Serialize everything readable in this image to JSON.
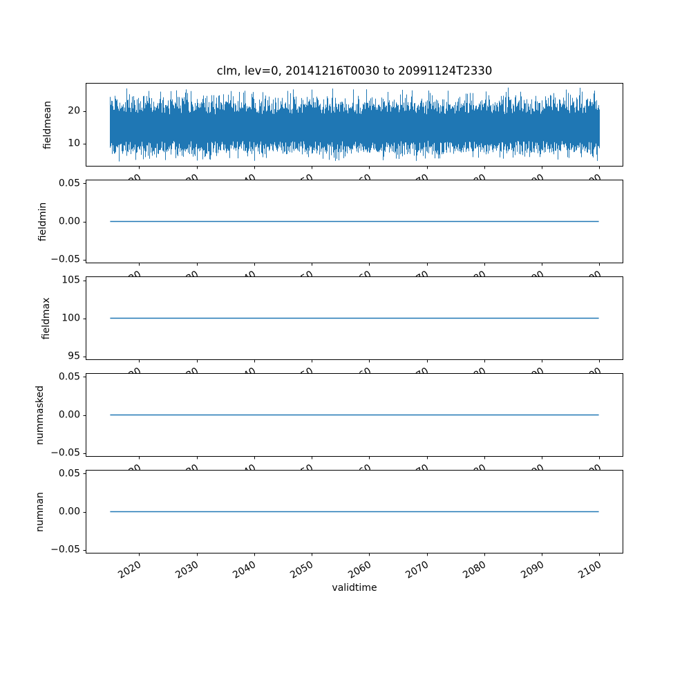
{
  "figure": {
    "title": "clm, lev=0, 20141216T0030 to 20991124T2330",
    "xlabel": "validtime",
    "background_color": "#ffffff",
    "line_color": "#1f77b4",
    "spine_color": "#000000",
    "text_color": "#000000"
  },
  "xaxis": {
    "lim": [
      2010.71,
      2104.15
    ],
    "ticks": [
      2020,
      2030,
      2040,
      2050,
      2060,
      2070,
      2080,
      2090,
      2100
    ],
    "tick_labels": [
      "2020",
      "2030",
      "2040",
      "2050",
      "2060",
      "2070",
      "2080",
      "2090",
      "2100"
    ],
    "tick_label_rotation_deg": 30,
    "data_start": 2014.96,
    "data_end": 2099.9
  },
  "chart_data": [
    {
      "type": "line",
      "name": "fieldmean",
      "ylabel": "fieldmean",
      "ylim": [
        3.15,
        28.56
      ],
      "yticks": [
        {
          "value": 10,
          "label": "10"
        },
        {
          "value": 20,
          "label": "20"
        }
      ],
      "series": {
        "kind": "dense-noise",
        "description": "high-frequency oscillating signal, solid band with spikes",
        "mean": 15,
        "band": [
          11,
          19
        ],
        "typical_range": [
          7.5,
          22.5
        ],
        "extremes": [
          4.3,
          27.4
        ],
        "seed": 20141216
      }
    },
    {
      "type": "line",
      "name": "fieldmin",
      "ylabel": "fieldmin",
      "ylim": [
        -0.055,
        0.055
      ],
      "yticks": [
        {
          "value": -0.05,
          "label": "−0.05"
        },
        {
          "value": 0,
          "label": "0.00"
        },
        {
          "value": 0.05,
          "label": "0.05"
        }
      ],
      "series": {
        "kind": "constant",
        "value": 0.0
      }
    },
    {
      "type": "line",
      "name": "fieldmax",
      "ylabel": "fieldmax",
      "ylim": [
        94.5,
        105.5
      ],
      "yticks": [
        {
          "value": 95,
          "label": "95"
        },
        {
          "value": 100,
          "label": "100"
        },
        {
          "value": 105,
          "label": "105"
        }
      ],
      "series": {
        "kind": "constant",
        "value": 100.0
      }
    },
    {
      "type": "line",
      "name": "nummasked",
      "ylabel": "nummasked",
      "ylim": [
        -0.055,
        0.055
      ],
      "yticks": [
        {
          "value": -0.05,
          "label": "−0.05"
        },
        {
          "value": 0,
          "label": "0.00"
        },
        {
          "value": 0.05,
          "label": "0.05"
        }
      ],
      "series": {
        "kind": "constant",
        "value": 0.0
      }
    },
    {
      "type": "line",
      "name": "numnan",
      "ylabel": "numnan",
      "ylim": [
        -0.055,
        0.055
      ],
      "yticks": [
        {
          "value": -0.05,
          "label": "−0.05"
        },
        {
          "value": 0,
          "label": "0.00"
        },
        {
          "value": 0.05,
          "label": "0.05"
        }
      ],
      "series": {
        "kind": "constant",
        "value": 0.0
      }
    }
  ]
}
